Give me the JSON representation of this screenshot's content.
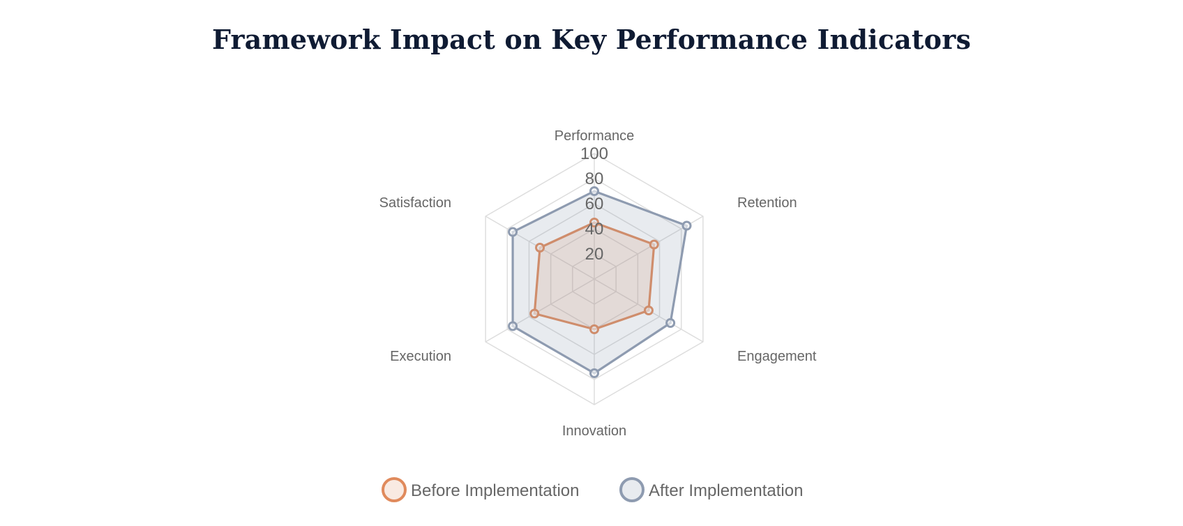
{
  "chart_data": {
    "type": "radar",
    "title": "Framework Impact on Key Performance Indicators",
    "axes": [
      "Performance",
      "Retention",
      "Engagement",
      "Innovation",
      "Execution",
      "Satisfaction"
    ],
    "r_range": [
      0,
      100
    ],
    "ticks": [
      "20",
      "40",
      "60",
      "80",
      "100"
    ],
    "tick_values": [
      20,
      40,
      60,
      80,
      100
    ],
    "grid": true,
    "legend_position": "bottom",
    "series": [
      {
        "name": "Before Implementation",
        "values": [
          45,
          55,
          50,
          40,
          55,
          50
        ],
        "color": "#e08a5c",
        "fill": "rgba(224,138,92,0.18)"
      },
      {
        "name": "After Implementation",
        "values": [
          70,
          85,
          70,
          75,
          75,
          75
        ],
        "color": "#8e9bb0",
        "fill": "rgba(142,155,176,0.20)"
      }
    ]
  }
}
